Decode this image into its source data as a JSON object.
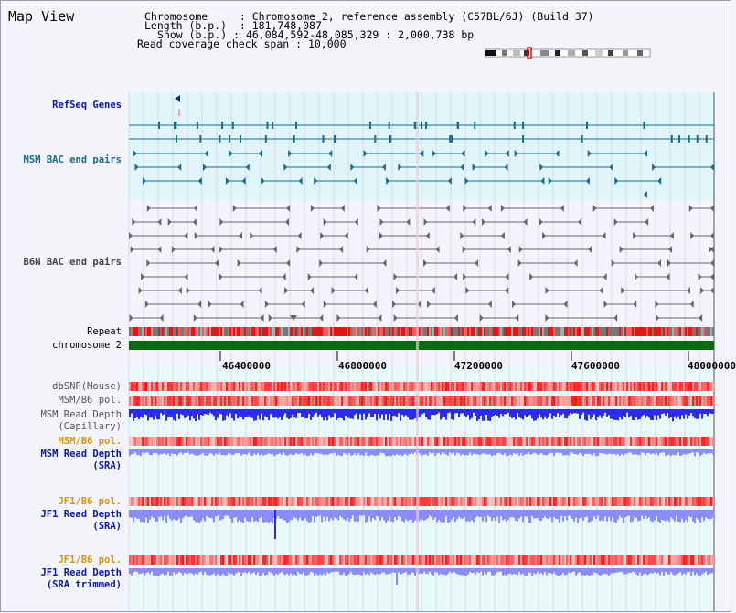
{
  "title": "Map View",
  "info": {
    "chromosome_label": "Chromosome",
    "chromosome_value": "Chromosome 2, reference assembly (C57BL/6J) (Build 37)",
    "length_label": "Length (b.p.)",
    "length_value": "181,748,087",
    "show_label": "Show (b.p.)",
    "show_value": "46,084,592-48,085,329 : 2,000,738 bp",
    "span_label": "Read coverage check span",
    "span_value": "10,000"
  },
  "tracks": {
    "refseq": "RefSeq Genes",
    "msm_bac": "MSM BAC end pairs",
    "b6n_bac": "B6N BAC end pairs",
    "repeat": "Repeat",
    "chromosome": "chromosome 2",
    "dbsnp": "dbSNP(Mouse)",
    "msm_b6_pol": "MSM/B6 pol.",
    "msm_depth_cap_1": "MSM Read Depth",
    "msm_depth_cap_2": "(Capillary)",
    "msm_b6_pol2": "MSM/B6 pol.",
    "msm_depth_sra_1": "MSM Read Depth",
    "msm_depth_sra_2": "(SRA)",
    "jf1_b6_pol": "JF1/B6 pol.",
    "jf1_depth_sra_1": "JF1 Read Depth",
    "jf1_depth_sra_2": "(SRA)",
    "jf1_b6_pol2": "JF1/B6 pol.",
    "jf1_depth_trim_1": "JF1 Read Depth",
    "jf1_depth_trim_2": "(SRA trimmed)"
  },
  "axis": {
    "ticks": [
      "46400000",
      "46800000",
      "47200000",
      "47600000",
      "48000000"
    ]
  },
  "colors": {
    "teal": "#1a6c8a",
    "navy": "#0b1a9a",
    "orange": "#d8960a",
    "chromosome_green": "#0a6a10",
    "cyan_band": "#e0f6fb",
    "depth_blue": "#2a2af0",
    "depth_light": "#8c8cff"
  }
}
